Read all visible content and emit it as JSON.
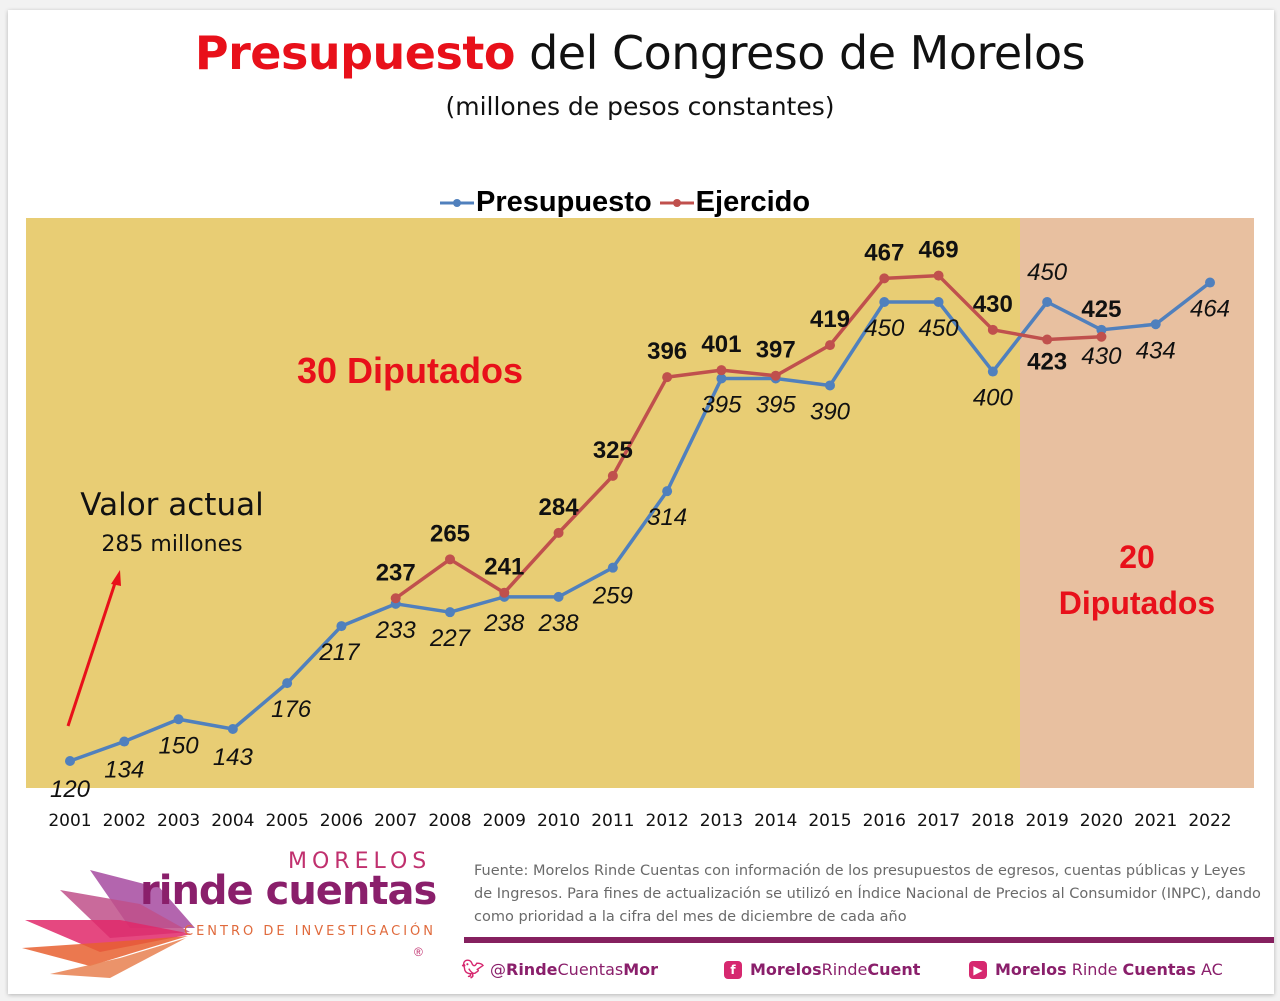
{
  "header": {
    "title_highlight": "Presupuesto",
    "title_rest": " del Congreso de Morelos",
    "subtitle": "(millones de pesos constantes)"
  },
  "colors": {
    "presupuesto": "#5080bd",
    "ejercido": "#c0504d",
    "region_30": "#e8cd74",
    "region_20": "#e8c0a0",
    "annotation_red": "#e8101a",
    "brand_purple": "#85205f",
    "brand_pink": "#d6286f"
  },
  "chart_data": {
    "type": "line",
    "title": "Presupuesto del Congreso de Morelos",
    "subtitle": "(millones de pesos constantes)",
    "xlabel": "",
    "ylabel": "",
    "ylim": [
      100,
      480
    ],
    "grid": false,
    "legend_position": "top-center",
    "categories": [
      "2001",
      "2002",
      "2003",
      "2004",
      "2005",
      "2006",
      "2007",
      "2008",
      "2009",
      "2010",
      "2011",
      "2012",
      "2013",
      "2014",
      "2015",
      "2016",
      "2017",
      "2018",
      "2019",
      "2020",
      "2021",
      "2022"
    ],
    "series": [
      {
        "name": "Presupuesto",
        "values": [
          120,
          134,
          150,
          143,
          176,
          217,
          233,
          227,
          238,
          238,
          259,
          314,
          395,
          395,
          390,
          450,
          450,
          400,
          450,
          430,
          434,
          464
        ],
        "labels": [
          "120",
          "134",
          "150",
          "143",
          "176",
          "217",
          "233",
          "227",
          "238",
          "238",
          "259",
          "314",
          "395",
          "395",
          "390",
          "450",
          "450",
          "400",
          "450",
          "430",
          "434",
          "464"
        ]
      },
      {
        "name": "Ejercido",
        "values": [
          null,
          null,
          null,
          null,
          null,
          null,
          237,
          265,
          241,
          284,
          325,
          396,
          401,
          397,
          419,
          467,
          469,
          430,
          423,
          425,
          null,
          null
        ],
        "labels": [
          null,
          null,
          null,
          null,
          null,
          null,
          "237",
          "265",
          "241",
          "284",
          "325",
          "396",
          "401",
          "397",
          "419",
          "467",
          "469",
          "430",
          "423",
          "425",
          null,
          null
        ]
      }
    ],
    "regions": [
      {
        "label": "30 Diputados",
        "from": "2001",
        "to": "2018"
      },
      {
        "label_line1": "20",
        "label_line2": "Diputados",
        "from": "2019",
        "to": "2022"
      }
    ],
    "annotations": {
      "valor_actual_title": "Valor actual",
      "valor_actual_value": "285 millones"
    }
  },
  "footer": {
    "logo_line1": "MORELOS",
    "logo_line2": "rinde cuentas",
    "logo_line3": "CENTRO DE INVESTIGACIÓN",
    "logo_reg": "®",
    "source": "Fuente: Morelos Rinde Cuentas con información de los presupuestos de egresos, cuentas públicas y Leyes de Ingresos. Para fines de actualización se utilizó en Índice Nacional de Precios al Consumidor (INPC), dando como prioridad a la cifra del mes de diciembre de cada año",
    "socials": [
      {
        "icon": "twitter-icon",
        "parts": [
          [
            "@",
            false
          ],
          [
            "Rinde",
            true
          ],
          [
            "Cuentas",
            false
          ],
          [
            "Mor",
            true
          ]
        ]
      },
      {
        "icon": "facebook-icon",
        "parts": [
          [
            "Morelos",
            true
          ],
          [
            "Rinde",
            false
          ],
          [
            "Cuent",
            true
          ]
        ]
      },
      {
        "icon": "youtube-icon",
        "parts": [
          [
            "Morelos",
            true
          ],
          [
            " Rinde ",
            false
          ],
          [
            "Cuentas",
            true
          ],
          [
            " AC",
            false
          ]
        ]
      }
    ]
  }
}
